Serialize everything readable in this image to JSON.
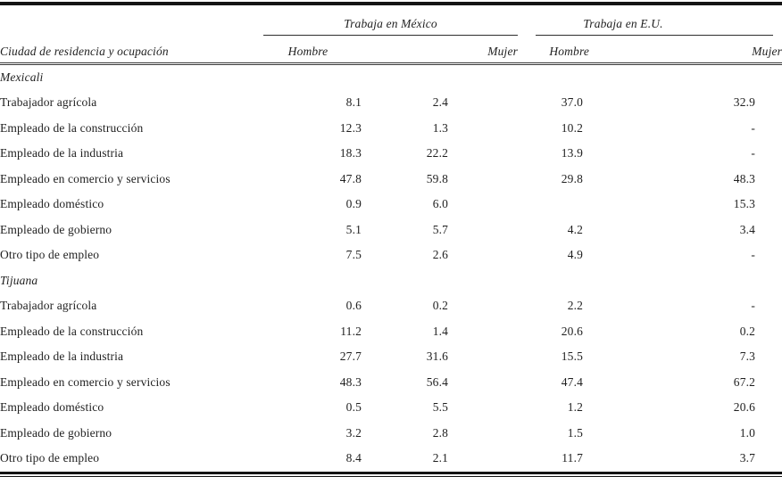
{
  "page": {
    "background": "#ffffff",
    "text_color": "#1f1f1f",
    "rule_color": "#141414"
  },
  "table": {
    "row_header": "Ciudad de residencia y ocupación",
    "groups": [
      {
        "label": "Trabaja en México",
        "subcolumns": [
          "Hombre",
          "Mujer"
        ]
      },
      {
        "label": "Trabaja en E.U.",
        "subcolumns": [
          "Hombre",
          "Mujer"
        ]
      }
    ],
    "sections": [
      {
        "name": "Mexicali",
        "rows": [
          {
            "label": "Trabajador agrícola",
            "values": [
              "8.1",
              "2.4",
              "37.0",
              "32.9"
            ]
          },
          {
            "label": "Empleado de la construcción",
            "values": [
              "12.3",
              "1.3",
              "10.2",
              "-"
            ]
          },
          {
            "label": "Empleado de la industria",
            "values": [
              "18.3",
              "22.2",
              "13.9",
              "-"
            ]
          },
          {
            "label": "Empleado en comercio y servicios",
            "values": [
              "47.8",
              "59.8",
              "29.8",
              "48.3"
            ]
          },
          {
            "label": "Empleado doméstico",
            "values": [
              "0.9",
              "6.0",
              "",
              "15.3"
            ]
          },
          {
            "label": "Empleado de gobierno",
            "values": [
              "5.1",
              "5.7",
              "4.2",
              "3.4"
            ]
          },
          {
            "label": "Otro tipo de empleo",
            "values": [
              "7.5",
              "2.6",
              "4.9",
              "-"
            ]
          }
        ]
      },
      {
        "name": "Tijuana",
        "rows": [
          {
            "label": "Trabajador agrícola",
            "values": [
              "0.6",
              "0.2",
              "2.2",
              "-"
            ]
          },
          {
            "label": "Empleado de la construcción",
            "values": [
              "11.2",
              "1.4",
              "20.6",
              "0.2"
            ]
          },
          {
            "label": "Empleado de la industria",
            "values": [
              "27.7",
              "31.6",
              "15.5",
              "7.3"
            ]
          },
          {
            "label": "Empleado en comercio y servicios",
            "values": [
              "48.3",
              "56.4",
              "47.4",
              "67.2"
            ]
          },
          {
            "label": "Empleado doméstico",
            "values": [
              "0.5",
              "5.5",
              "1.2",
              "20.6"
            ]
          },
          {
            "label": "Empleado de gobierno",
            "values": [
              "3.2",
              "2.8",
              "1.5",
              "1.0"
            ]
          },
          {
            "label": "Otro tipo de empleo",
            "values": [
              "8.4",
              "2.1",
              "11.7",
              "3.7"
            ]
          }
        ]
      }
    ]
  },
  "chart_data": {
    "type": "table",
    "columns": [
      "Ciudad de residencia y ocupación",
      "Trabaja en México - Hombre",
      "Trabaja en México - Mujer",
      "Trabaja en E.U. - Hombre",
      "Trabaja en E.U. - Mujer"
    ],
    "rows": [
      [
        "Mexicali",
        null,
        null,
        null,
        null
      ],
      [
        "Trabajador agrícola",
        8.1,
        2.4,
        37.0,
        32.9
      ],
      [
        "Empleado de la construcción",
        12.3,
        1.3,
        10.2,
        "-"
      ],
      [
        "Empleado de la industria",
        18.3,
        22.2,
        13.9,
        "-"
      ],
      [
        "Empleado en comercio y servicios",
        47.8,
        59.8,
        29.8,
        48.3
      ],
      [
        "Empleado doméstico",
        0.9,
        6.0,
        null,
        15.3
      ],
      [
        "Empleado de gobierno",
        5.1,
        5.7,
        4.2,
        3.4
      ],
      [
        "Otro tipo de empleo",
        7.5,
        2.6,
        4.9,
        "-"
      ],
      [
        "Tijuana",
        null,
        null,
        null,
        null
      ],
      [
        "Trabajador agrícola",
        0.6,
        0.2,
        2.2,
        "-"
      ],
      [
        "Empleado de la construcción",
        11.2,
        1.4,
        20.6,
        0.2
      ],
      [
        "Empleado de la industria",
        27.7,
        31.6,
        15.5,
        7.3
      ],
      [
        "Empleado en comercio y servicios",
        48.3,
        56.4,
        47.4,
        67.2
      ],
      [
        "Empleado doméstico",
        0.5,
        5.5,
        1.2,
        20.6
      ],
      [
        "Empleado de gobierno",
        3.2,
        2.8,
        1.5,
        1.0
      ],
      [
        "Otro tipo de empleo",
        8.4,
        2.1,
        11.7,
        3.7
      ]
    ]
  }
}
